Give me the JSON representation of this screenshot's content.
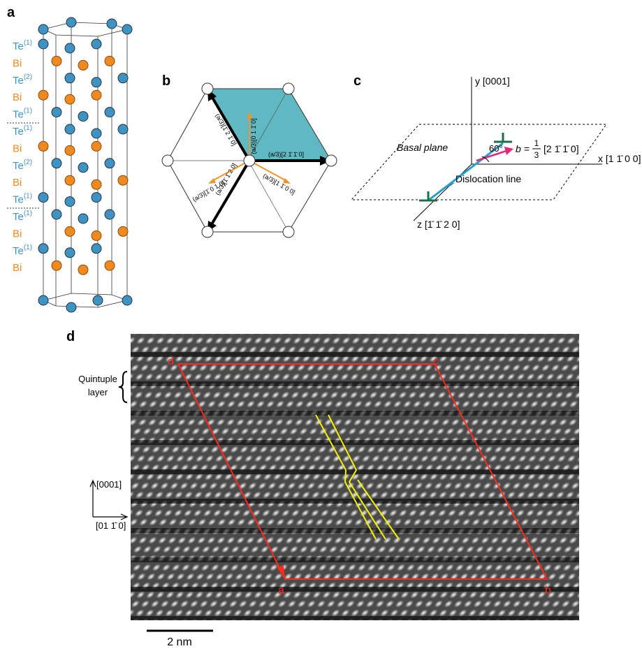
{
  "panel_a": {
    "label": "a",
    "layers": [
      {
        "element": "Te",
        "superscript": "(1)"
      },
      {
        "element": "Bi"
      },
      {
        "element": "Te",
        "superscript": "(2)"
      },
      {
        "element": "Bi"
      },
      {
        "element": "Te",
        "superscript": "(1)"
      },
      {
        "element": "Te",
        "superscript": "(1)"
      },
      {
        "element": "Bi"
      },
      {
        "element": "Te",
        "superscript": "(2)"
      },
      {
        "element": "Bi"
      },
      {
        "element": "Te",
        "superscript": "(1)"
      },
      {
        "element": "Te",
        "superscript": "(1)"
      },
      {
        "element": "Bi"
      },
      {
        "element": "Te",
        "superscript": "(1)"
      },
      {
        "element": "Bi"
      }
    ]
  },
  "panel_b": {
    "label": "b",
    "vectors": [
      "(a/3)[2 1̄ 1̄ 0]",
      "(a/3)[1̄ 2 1̄ 0]",
      "(a/3)[1̄ 1̄ 2 0]",
      "(a/3)[0 1 1̄ 0]",
      "(a/3)[1̄ 0 1 0]",
      "(a/3)[1 1̄ 0 0]"
    ]
  },
  "panel_c": {
    "label": "c",
    "y_axis": "y [0001]",
    "x_axis": "x [1 1̄ 0 0]",
    "z_axis": "z [1̄ 1̄ 2 0]",
    "plane": "Basal plane",
    "angle": "60°",
    "burgers": {
      "symbol": "b",
      "equals": "=",
      "numerator": "1",
      "denominator": "3",
      "direction": "[2 1̄ 1̄ 0]"
    },
    "line_label": "Dislocation line"
  },
  "panel_d": {
    "label": "d",
    "quintuple": [
      "Quintuple",
      "layer"
    ],
    "dir_up": "[0001]",
    "dir_right": "[01 1̄ 0]",
    "corners": [
      "d",
      "c",
      "a",
      "b"
    ],
    "scale": "2 nm"
  }
}
